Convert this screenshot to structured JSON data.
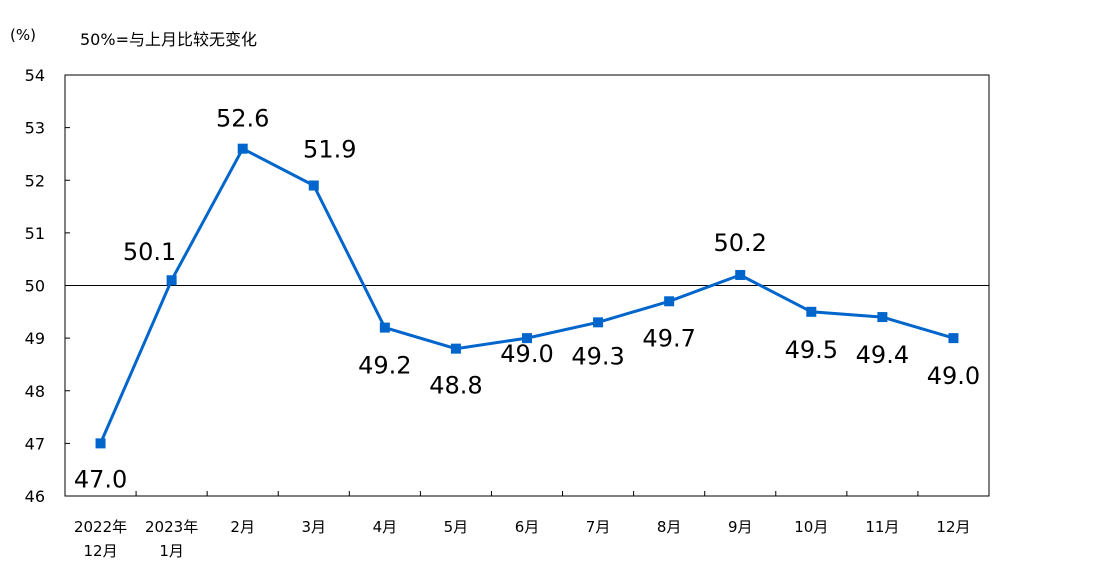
{
  "chart_data": {
    "type": "line",
    "unit_label": "(%)",
    "reference_note": "50%=与上月比较无变化",
    "title": "",
    "xlabel": "",
    "ylabel": "",
    "ylim": [
      46,
      54
    ],
    "y_ticks": [
      "46",
      "47",
      "48",
      "49",
      "50",
      "51",
      "52",
      "53",
      "54"
    ],
    "reference_line": 50,
    "grid": false,
    "categories": [
      [
        "2022年",
        "12月"
      ],
      [
        "2023年",
        "1月"
      ],
      [
        "2月"
      ],
      [
        "3月"
      ],
      [
        "4月"
      ],
      [
        "5月"
      ],
      [
        "6月"
      ],
      [
        "7月"
      ],
      [
        "8月"
      ],
      [
        "9月"
      ],
      [
        "10月"
      ],
      [
        "11月"
      ],
      [
        "12月"
      ]
    ],
    "series": [
      {
        "values": [
          47.0,
          50.1,
          52.6,
          51.9,
          49.2,
          48.8,
          49.0,
          49.3,
          49.7,
          50.2,
          49.5,
          49.4,
          49.0
        ],
        "labels": [
          "47.0",
          "50.1",
          "52.6",
          "51.9",
          "49.2",
          "48.8",
          "49.0",
          "49.3",
          "49.7",
          "50.2",
          "49.5",
          "49.4",
          "49.0"
        ],
        "color": "#0066cc"
      }
    ],
    "colors": {
      "series": "#0066cc",
      "axis": "#000000",
      "text": "#000000"
    }
  }
}
